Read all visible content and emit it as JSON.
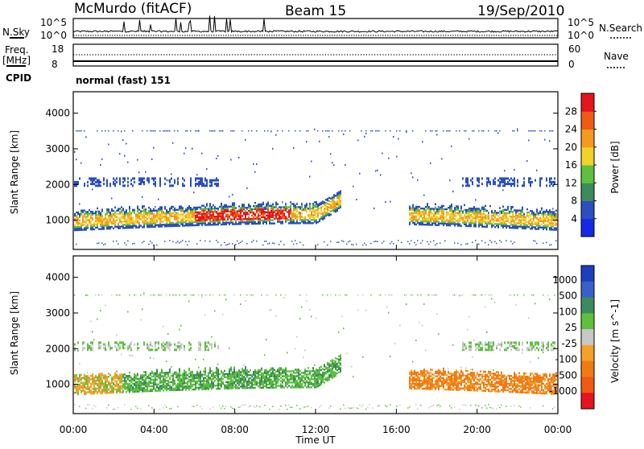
{
  "header": {
    "station": "McMurdo (fitACF)",
    "beam": "Beam 15",
    "date": "19/Sep/2010"
  },
  "noise_panel": {
    "left_label": "N.Sky",
    "right_label": "N.Search",
    "left_ticks": [
      "10^5",
      "10^0"
    ],
    "right_ticks": [
      "10^5",
      "10^0"
    ]
  },
  "freq_panel": {
    "left_label_1": "Freq.",
    "left_label_2": "[MHz]",
    "right_label": "Nave",
    "left_ticks": [
      "18",
      "8"
    ],
    "right_ticks": [
      "60",
      "0"
    ],
    "cpid_label": "CPID",
    "cpid_value": "normal (fast) 151"
  },
  "chart_data": [
    {
      "type": "heatmap",
      "ylabel": "Slant Range [km]",
      "y_ticks": [
        1000,
        2000,
        3000,
        4000
      ],
      "ylim": [
        180,
        4600
      ],
      "colorbar": {
        "label": "Power [dB]",
        "ticks": [
          "4",
          "8",
          "12",
          "16",
          "20",
          "24",
          "28"
        ],
        "colors": [
          "#1428e6",
          "#2b4fbf",
          "#3d8a5c",
          "#5fbf3f",
          "#f0d22a",
          "#f59a1e",
          "#ef5a14",
          "#e6141e"
        ]
      }
    },
    {
      "type": "heatmap",
      "xlabel": "Time UT",
      "ylabel": "Slant Range [km]",
      "y_ticks": [
        1000,
        2000,
        3000,
        4000
      ],
      "ylim": [
        180,
        4600
      ],
      "x_ticks": [
        "00:00",
        "04:00",
        "08:00",
        "12:00",
        "16:00",
        "20:00",
        "00:00"
      ],
      "colorbar": {
        "label": "Velocity [m s^-1]",
        "ticks": [
          "1000",
          "500",
          "100",
          "25",
          "-25",
          "-100",
          "-500",
          "-1000"
        ],
        "colors": [
          "#1c3fbf",
          "#3a5fc8",
          "#3d8a5c",
          "#5fbf3f",
          "#c8c8c8",
          "#f5a02a",
          "#ef7a14",
          "#ef5a14",
          "#e6141e"
        ]
      }
    }
  ]
}
